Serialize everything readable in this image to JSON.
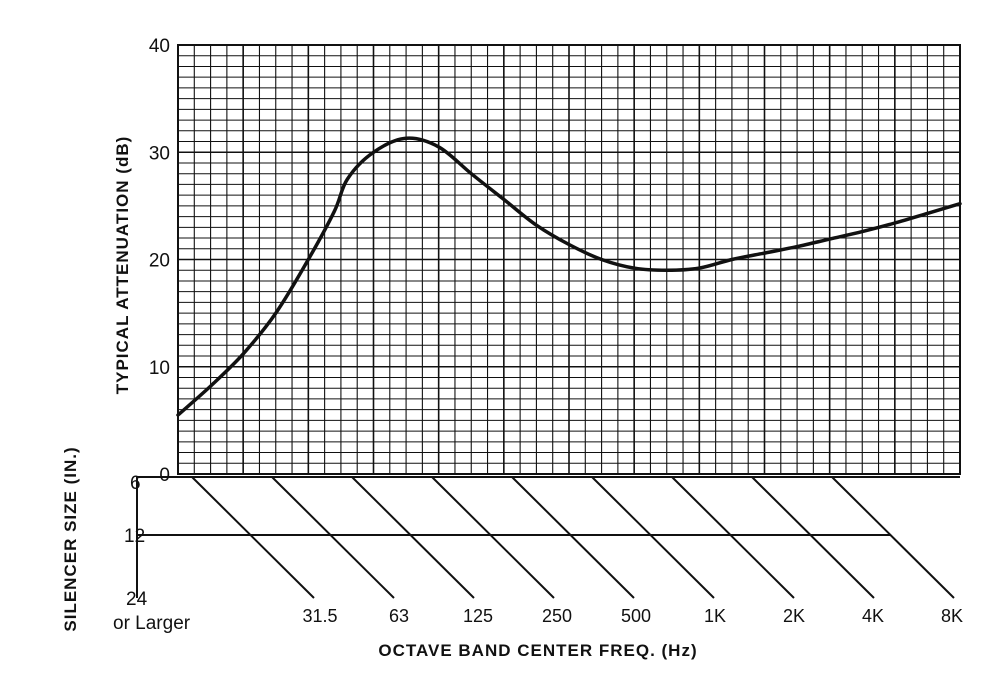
{
  "chart_data": {
    "type": "line",
    "ylabel": "TYPICAL ATTENUATION (dB)",
    "xlabel": "OCTAVE BAND CENTER FREQ. (Hz)",
    "ylim": [
      0,
      40
    ],
    "yticks": [
      "0",
      "10",
      "20",
      "30",
      "40"
    ],
    "grid": true,
    "x_categories": [
      "31.5",
      "63",
      "125",
      "250",
      "500",
      "1K",
      "2K",
      "4K",
      "8K"
    ],
    "silencer_size_label": "SILENCER SIZE (IN.)",
    "silencer_sizes": [
      "6",
      "12",
      "24"
    ],
    "silencer_size_extra": "or Larger",
    "series": [
      {
        "x_octave": [
          0.0,
          0.5,
          1.0,
          1.5,
          2.0,
          2.4,
          2.6,
          3.0,
          3.5,
          4.0,
          4.5,
          5.0,
          5.5,
          6.0,
          6.5,
          7.0,
          7.5,
          8.0,
          8.5,
          9.0,
          9.5,
          10.0,
          10.5,
          11.0,
          11.5,
          12.0
        ],
        "y": [
          5.5,
          8.2,
          11.2,
          15.0,
          20.0,
          24.5,
          27.5,
          30.0,
          31.3,
          30.5,
          28.0,
          25.6,
          23.2,
          21.4,
          20.0,
          19.2,
          19.0,
          19.2,
          20.0,
          20.6,
          21.2,
          21.9,
          22.6,
          23.4,
          24.3,
          25.2
        ]
      }
    ]
  }
}
